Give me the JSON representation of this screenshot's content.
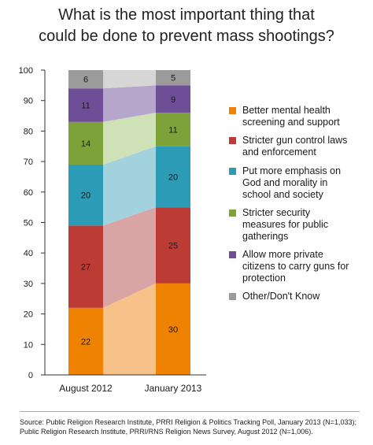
{
  "chart_data": {
    "type": "bar",
    "stacked": true,
    "title": "What is the most important thing that\ncould be done to prevent mass shootings?",
    "categories": [
      "August 2012",
      "January 2013"
    ],
    "ylim": [
      0,
      100
    ],
    "yticks": [
      0,
      10,
      20,
      30,
      40,
      50,
      60,
      70,
      80,
      90,
      100
    ],
    "legend_position": "right",
    "series": [
      {
        "name": "Better mental health screening and support",
        "color": "#ef8200",
        "light_color": "#f7c18a",
        "values": [
          22,
          30
        ]
      },
      {
        "name": "Stricter gun control laws and enforcement",
        "color": "#bd3b35",
        "light_color": "#d9a5a4",
        "values": [
          27,
          25
        ]
      },
      {
        "name": "Put more emphasis on God and morality in school and society",
        "color": "#2c9bb5",
        "light_color": "#a3d2df",
        "values": [
          20,
          20
        ]
      },
      {
        "name": "Stricter security measures for public gatherings",
        "color": "#7da23a",
        "light_color": "#cfe1b6",
        "values": [
          14,
          11
        ]
      },
      {
        "name": "Allow more private citizens to carry guns for protection",
        "color": "#6e4f97",
        "light_color": "#b6a6cb",
        "values": [
          11,
          9
        ]
      },
      {
        "name": "Other/Don't Know",
        "color": "#9b9b9b",
        "light_color": "#d6d6d6",
        "values": [
          6,
          5
        ]
      }
    ],
    "legend_labels": [
      "Better mental health\nscreening and support",
      "Stricter gun control laws\nand enforcement",
      "Put more emphasis on\nGod and morality in\nschool and society",
      "Stricter security\nmeasures for public\ngatherings",
      "Allow more private\ncitizens to carry guns for\nprotection",
      "Other/Don't Know"
    ]
  },
  "source_text": "Source: Public Religion Research Institute, PRRI Religion & Politics Tracking Poll, January 2013 (N=1,033);\nPublic Religion Research Institute, PRRI/RNS Religion News Survey, August 2012 (N=1,006)."
}
